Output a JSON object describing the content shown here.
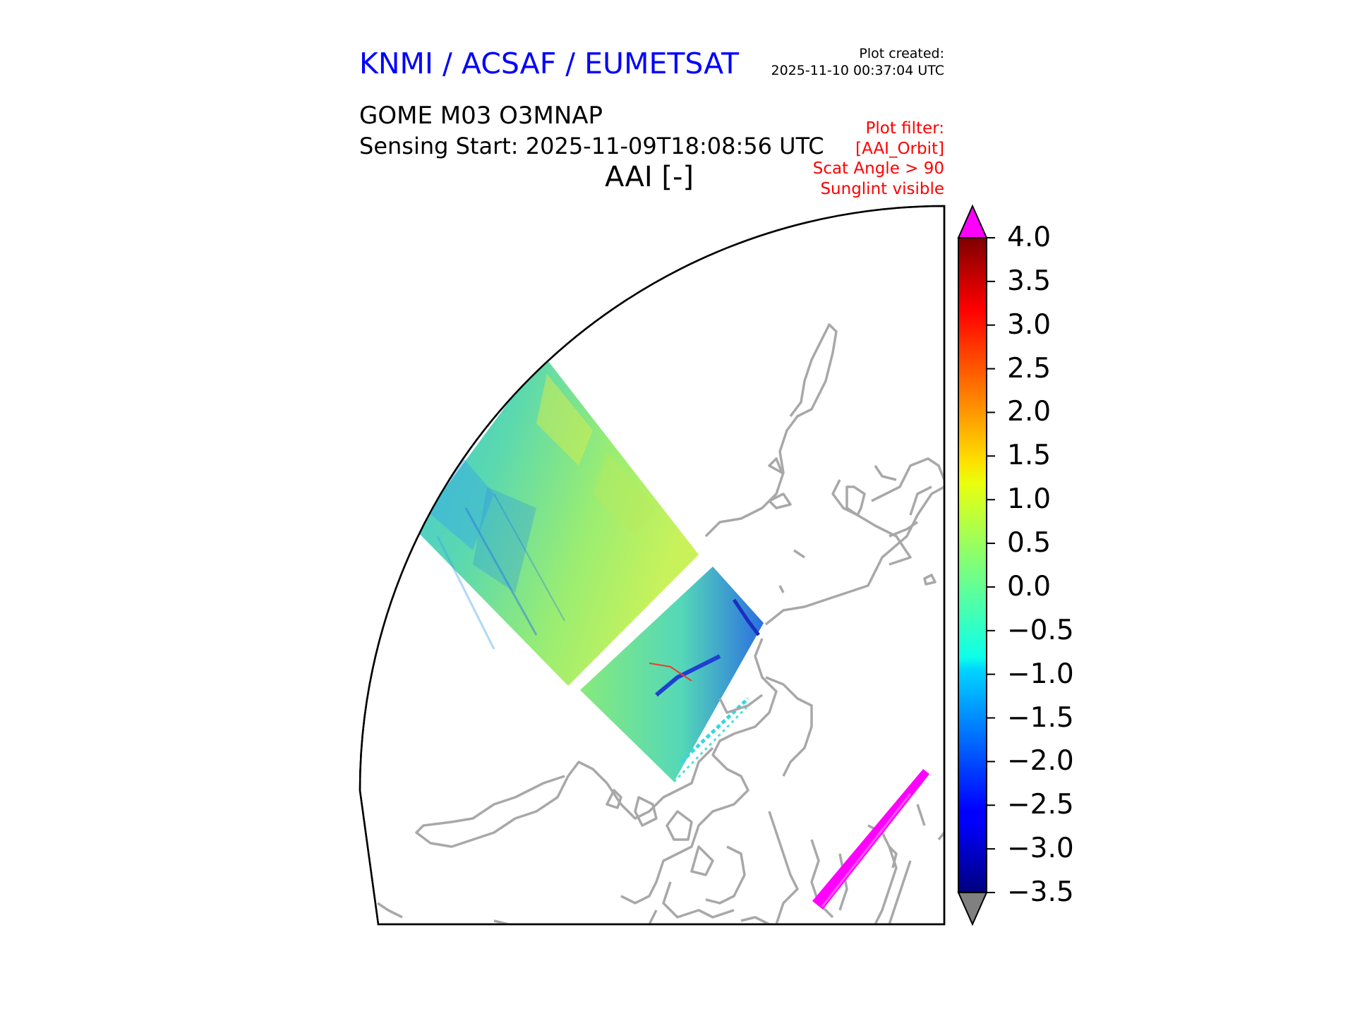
{
  "header": {
    "organisation": "KNMI / ACSAF / EUMETSAT",
    "plot_created_label": "Plot created:",
    "plot_created_time": "2025-11-10 00:37:04 UTC",
    "product": "GOME M03 O3MNAP",
    "sensing_start": "Sensing Start: 2025-11-09T18:08:56 UTC",
    "quantity": "AAI [-]",
    "filter_lines": [
      "Plot filter:",
      "[AAI_Orbit]",
      "Scat Angle > 90",
      "Sunglint visible"
    ]
  },
  "colors": {
    "organisation": "#0000ff",
    "filter_text": "#ff0000",
    "coastline": "#a8a8a8",
    "over_range": "#ff00ff",
    "under_range": "#808080",
    "frame": "#000000"
  },
  "colorbar": {
    "min": -3.5,
    "max": 4.0,
    "colormap": "jet",
    "extend": "both",
    "ticks": [
      "4.0",
      "3.5",
      "3.0",
      "2.5",
      "2.0",
      "1.5",
      "1.0",
      "0.5",
      "0.0",
      "−0.5",
      "−1.0",
      "−1.5",
      "−2.0",
      "−2.5",
      "−3.0",
      "−3.5"
    ]
  },
  "map": {
    "projection": "polar stereographic quadrant",
    "swaths": [
      "main-swath",
      "second-swath",
      "sunglint-strip"
    ]
  }
}
